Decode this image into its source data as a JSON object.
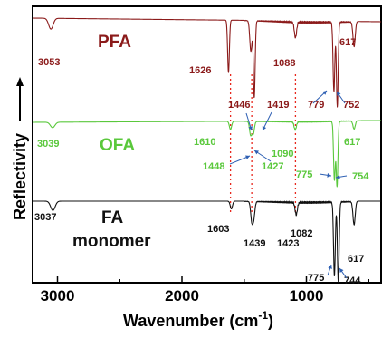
{
  "chart_data": {
    "type": "line",
    "xlabel": "Wavenumber (cm",
    "xlabel_superscript": "-1",
    "xlabel_close": ")",
    "ylabel": "Reflectivity",
    "xlim": [
      3200,
      400
    ],
    "x_ticks": [
      "3000",
      "2000",
      "1000"
    ],
    "x_tick_values": [
      3000,
      2000,
      1000
    ],
    "reversed_x_axis": true,
    "grid": false,
    "colors": {
      "PFA": "#8b1a1a",
      "OFA": "#5ac83c",
      "FA monomer": "#111111",
      "guides": "#e8281e",
      "arrows": "#2d5fb3"
    },
    "series": [
      {
        "name": "PFA",
        "label": "PFA",
        "peaks": [
          {
            "x": 3053,
            "depth": 0.7
          },
          {
            "x": 1626,
            "depth": 3.4
          },
          {
            "x": 1446,
            "depth": 2.0
          },
          {
            "x": 1419,
            "depth": 5.0
          },
          {
            "x": 1088,
            "depth": 1.0
          },
          {
            "x": 779,
            "depth": 4.5
          },
          {
            "x": 752,
            "depth": 5.5
          },
          {
            "x": 617,
            "depth": 1.6
          }
        ],
        "peak_labels": [
          "3053",
          "1626",
          "1446",
          "1419",
          "1088",
          "779",
          "752",
          "617"
        ]
      },
      {
        "name": "OFA",
        "label": "OFA",
        "peaks": [
          {
            "x": 3039,
            "depth": 0.4
          },
          {
            "x": 1610,
            "depth": 0.6
          },
          {
            "x": 1448,
            "depth": 1.0
          },
          {
            "x": 1427,
            "depth": 0.9
          },
          {
            "x": 1090,
            "depth": 0.6
          },
          {
            "x": 775,
            "depth": 4.3
          },
          {
            "x": 754,
            "depth": 4.8
          },
          {
            "x": 617,
            "depth": 0.6
          }
        ],
        "peak_labels": [
          "3039",
          "1610",
          "1448",
          "1427",
          "1090",
          "775",
          "754",
          "617"
        ]
      },
      {
        "name": "FA monomer",
        "label_line1": "FA",
        "label_line2": "monomer",
        "peaks": [
          {
            "x": 3037,
            "depth": 0.6
          },
          {
            "x": 1603,
            "depth": 0.5
          },
          {
            "x": 1439,
            "depth": 1.2
          },
          {
            "x": 1423,
            "depth": 1.0
          },
          {
            "x": 1082,
            "depth": 0.8
          },
          {
            "x": 775,
            "depth": 4.8
          },
          {
            "x": 744,
            "depth": 5.2
          },
          {
            "x": 617,
            "depth": 1.5
          }
        ],
        "peak_labels": [
          "3037",
          "1603",
          "1439",
          "1423",
          "1082",
          "775",
          "744",
          "617"
        ]
      }
    ],
    "guide_lines_x": [
      1610,
      1439,
      1088
    ]
  }
}
